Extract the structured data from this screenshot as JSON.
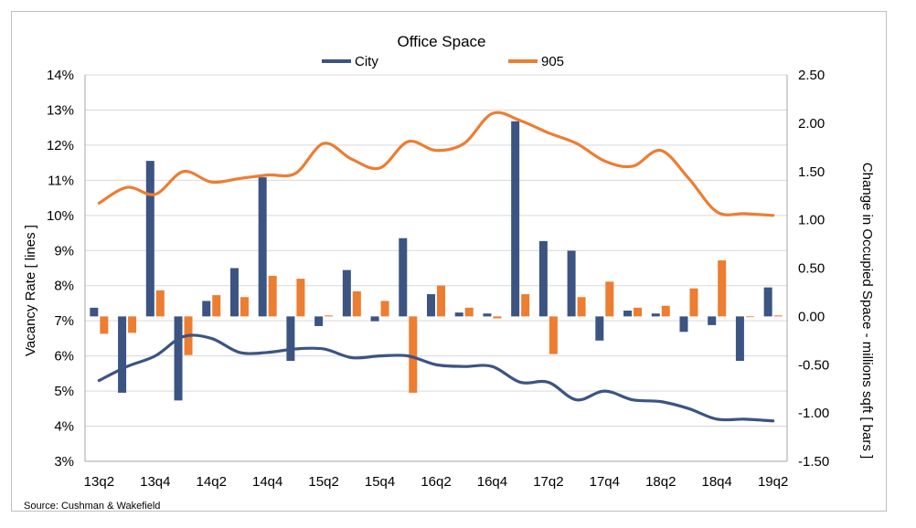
{
  "chart_data": {
    "type": "bar+line",
    "title": "Office Space",
    "ylabel_left": "Vacancy Rate  [ lines ]",
    "ylabel_right": "Change in Occupied Space - millions sqft  [ bars ]",
    "ylim_left": [
      3,
      14
    ],
    "ylim_right": [
      -1.5,
      2.5
    ],
    "yticks_left": [
      "3%",
      "4%",
      "5%",
      "6%",
      "7%",
      "8%",
      "9%",
      "10%",
      "11%",
      "12%",
      "13%",
      "14%"
    ],
    "yticks_right": [
      "-1.50",
      "-1.00",
      "-0.50",
      "0.00",
      "0.50",
      "1.00",
      "1.50",
      "2.00",
      "2.50"
    ],
    "categories": [
      "13q2",
      "13q3",
      "13q4",
      "14q1",
      "14q2",
      "14q3",
      "14q4",
      "15q1",
      "15q2",
      "15q3",
      "15q4",
      "16q1",
      "16q2",
      "16q3",
      "16q4",
      "17q1",
      "17q2",
      "17q3",
      "17q4",
      "18q1",
      "18q2",
      "18q3",
      "18q4",
      "19q1",
      "19q2"
    ],
    "xtick_labels": [
      "13q2",
      "13q4",
      "14q2",
      "14q4",
      "15q2",
      "15q4",
      "16q2",
      "16q4",
      "17q2",
      "17q4",
      "18q2",
      "18q4",
      "19q2"
    ],
    "series": [
      {
        "name": "City",
        "kind": "line",
        "axis": "left",
        "color": "#3c5482",
        "values": [
          5.3,
          5.7,
          6.0,
          6.55,
          6.5,
          6.1,
          6.1,
          6.2,
          6.2,
          5.95,
          6.0,
          6.0,
          5.75,
          5.7,
          5.7,
          5.25,
          5.25,
          4.75,
          5.0,
          4.75,
          4.7,
          4.5,
          4.2,
          4.2,
          4.15
        ]
      },
      {
        "name": "905",
        "kind": "line",
        "axis": "left",
        "color": "#ed7d31",
        "values": [
          10.35,
          10.8,
          10.6,
          11.25,
          10.95,
          11.05,
          11.15,
          11.2,
          12.05,
          11.6,
          11.35,
          12.1,
          11.85,
          12.05,
          12.9,
          12.7,
          12.35,
          12.05,
          11.55,
          11.4,
          11.85,
          11.05,
          10.1,
          10.05,
          10.0
        ]
      },
      {
        "name": "City",
        "kind": "bar",
        "axis": "right",
        "color": "#3c5482",
        "values": [
          0.09,
          -0.79,
          1.61,
          -0.87,
          0.16,
          0.5,
          1.44,
          -0.46,
          -0.1,
          0.48,
          -0.05,
          0.81,
          0.23,
          0.04,
          0.03,
          2.02,
          0.78,
          0.68,
          -0.25,
          0.06,
          0.03,
          -0.16,
          -0.09,
          -0.46,
          0.3
        ]
      },
      {
        "name": "905",
        "kind": "bar",
        "axis": "right",
        "color": "#ed7d31",
        "values": [
          -0.18,
          -0.17,
          0.27,
          -0.4,
          0.22,
          0.2,
          0.42,
          0.39,
          0.01,
          0.26,
          0.16,
          -0.79,
          0.32,
          0.09,
          -0.02,
          0.23,
          -0.39,
          0.2,
          0.36,
          0.09,
          0.11,
          0.29,
          0.58,
          0.0,
          0.01
        ]
      }
    ],
    "legend": {
      "position": "top-center",
      "items": [
        {
          "label": "City",
          "color": "#3c5482"
        },
        {
          "label": "905",
          "color": "#ed7d31"
        }
      ]
    },
    "grid": "horizontal"
  },
  "source": "Source: Cushman & Wakefield"
}
